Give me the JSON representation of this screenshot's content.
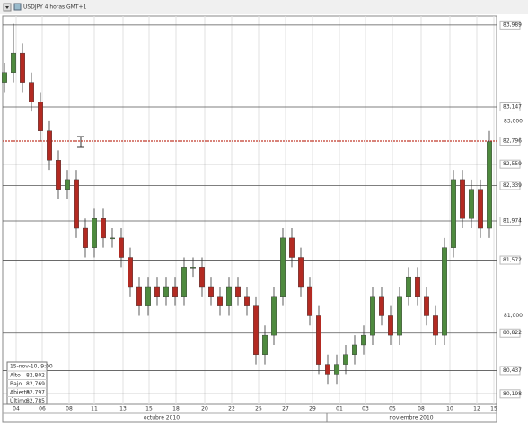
{
  "chart_data": {
    "type": "candlestick",
    "title": "USDJPY 4 horas GMT+1",
    "open": [
      83.4,
      83.5,
      83.7,
      83.4,
      83.2,
      82.9,
      82.6,
      82.3,
      82.4,
      81.9,
      81.7,
      82.0,
      81.8,
      81.8,
      81.6,
      81.3,
      81.1,
      81.3,
      81.2,
      81.3,
      81.2,
      81.5,
      81.5,
      81.3,
      81.2,
      81.1,
      81.3,
      81.2,
      81.1,
      80.6,
      80.8,
      81.2,
      81.8,
      81.6,
      81.3,
      81.0,
      80.5,
      80.4,
      80.5,
      80.6,
      80.7,
      80.8,
      81.2,
      81.0,
      80.8,
      81.2,
      81.4,
      81.2,
      81.0,
      80.8,
      81.7,
      82.4,
      82.0,
      82.3,
      81.9
    ],
    "high": [
      83.6,
      84.0,
      83.8,
      83.5,
      83.3,
      83.0,
      82.7,
      82.5,
      82.5,
      82.0,
      82.1,
      82.1,
      81.9,
      81.9,
      81.7,
      81.4,
      81.4,
      81.4,
      81.4,
      81.4,
      81.6,
      81.6,
      81.6,
      81.4,
      81.3,
      81.4,
      81.4,
      81.3,
      81.2,
      80.9,
      81.3,
      81.9,
      81.9,
      81.7,
      81.4,
      81.1,
      80.6,
      80.6,
      80.7,
      80.8,
      80.9,
      81.3,
      81.3,
      81.1,
      81.3,
      81.5,
      81.5,
      81.3,
      81.1,
      81.8,
      82.5,
      82.5,
      82.4,
      82.4,
      82.9
    ],
    "low": [
      83.3,
      83.4,
      83.3,
      83.1,
      82.8,
      82.5,
      82.2,
      82.2,
      81.8,
      81.6,
      81.6,
      81.7,
      81.7,
      81.5,
      81.2,
      81.0,
      81.0,
      81.1,
      81.1,
      81.1,
      81.1,
      81.4,
      81.2,
      81.1,
      81.0,
      81.0,
      81.1,
      81.0,
      80.5,
      80.5,
      80.7,
      81.1,
      81.5,
      81.2,
      80.9,
      80.4,
      80.3,
      80.3,
      80.4,
      80.5,
      80.6,
      80.7,
      80.9,
      80.7,
      80.7,
      81.1,
      81.1,
      80.9,
      80.7,
      80.7,
      81.6,
      81.9,
      81.9,
      81.8,
      81.8
    ],
    "close": [
      83.5,
      83.7,
      83.4,
      83.2,
      82.9,
      82.6,
      82.3,
      82.4,
      81.9,
      81.7,
      82.0,
      81.8,
      81.8,
      81.6,
      81.3,
      81.1,
      81.3,
      81.2,
      81.3,
      81.2,
      81.5,
      81.5,
      81.3,
      81.2,
      81.1,
      81.3,
      81.2,
      81.1,
      80.6,
      80.8,
      81.2,
      81.8,
      81.6,
      81.3,
      81.0,
      80.5,
      80.4,
      80.5,
      80.6,
      80.7,
      80.8,
      81.2,
      81.0,
      80.8,
      81.2,
      81.4,
      81.2,
      81.0,
      80.8,
      81.7,
      82.4,
      82.0,
      82.3,
      81.9,
      82.79
    ],
    "up_color": "#4e8a3e",
    "down_color": "#b32a22",
    "xlim": [
      -0.2,
      54.8
    ],
    "ylim": [
      80.09,
      84.08
    ],
    "xticks": [
      {
        "value": 1.3,
        "label": "04"
      },
      {
        "value": 4.2,
        "label": "06"
      },
      {
        "value": 7.2,
        "label": "08"
      },
      {
        "value": 10,
        "label": "11"
      },
      {
        "value": 13.2,
        "label": "13"
      },
      {
        "value": 16.1,
        "label": "15"
      },
      {
        "value": 19.1,
        "label": "18"
      },
      {
        "value": 22.3,
        "label": "20"
      },
      {
        "value": 25.3,
        "label": "22"
      },
      {
        "value": 28.3,
        "label": "25"
      },
      {
        "value": 31.3,
        "label": "27"
      },
      {
        "value": 34.3,
        "label": "29"
      },
      {
        "value": 37.3,
        "label": "01"
      },
      {
        "value": 40.2,
        "label": "03"
      },
      {
        "value": 43.2,
        "label": "05"
      },
      {
        "value": 46.4,
        "label": "08"
      },
      {
        "value": 49.6,
        "label": "10"
      },
      {
        "value": 52.6,
        "label": "12"
      },
      {
        "value": 54.5,
        "label": "15"
      }
    ],
    "months": [
      {
        "value": 17.5,
        "label": "octubre 2010"
      },
      {
        "value": 45.3,
        "label": "noviembre 2010"
      }
    ],
    "month_break": 35.9,
    "yticks": [
      {
        "value": 83,
        "label": "83,000"
      },
      {
        "value": 81,
        "label": "81,000"
      }
    ],
    "levels": [
      {
        "value": 83.989,
        "label": "83,989"
      },
      {
        "value": 83.147,
        "label": "83,147"
      },
      {
        "value": 82.796,
        "label": "82,796"
      },
      {
        "value": 82.559,
        "label": "82,559"
      },
      {
        "value": 82.339,
        "label": "82,339"
      },
      {
        "value": 81.974,
        "label": "81,974"
      },
      {
        "value": 81.572,
        "label": "81,572"
      },
      {
        "value": 80.822,
        "label": "80,822"
      },
      {
        "value": 80.437,
        "label": "80,437"
      },
      {
        "value": 80.198,
        "label": "80,198"
      }
    ],
    "current_level": 2,
    "current_color": "#c0392b",
    "info": {
      "date": "15-nov-10, 9:00",
      "rows": [
        [
          "Alto",
          "82,802"
        ],
        [
          "Bajo",
          "82,769"
        ],
        [
          "Abierto",
          "82,797"
        ],
        [
          "Último",
          "82,785"
        ]
      ]
    }
  }
}
